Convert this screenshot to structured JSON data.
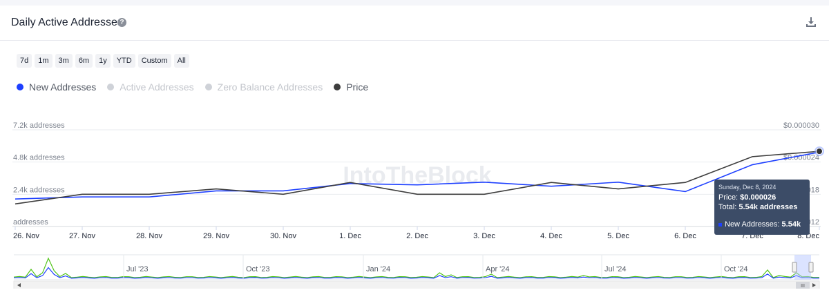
{
  "header": {
    "title": "Daily Active Addresses",
    "help_glyph": "?"
  },
  "ranges": [
    "7d",
    "1m",
    "3m",
    "6m",
    "1y",
    "YTD",
    "Custom",
    "All"
  ],
  "legend": [
    {
      "label": "New Addresses",
      "color": "#1e40ff",
      "active": true
    },
    {
      "label": "Active Addresses",
      "color": "#cfd2d8",
      "active": false
    },
    {
      "label": "Zero Balance Addresses",
      "color": "#cfd2d8",
      "active": false
    },
    {
      "label": "Price",
      "color": "#3d3d3d",
      "active": true
    }
  ],
  "watermark": "IntoTheBlock",
  "chart_data": {
    "type": "line",
    "categories": [
      "26. Nov",
      "27. Nov",
      "28. Nov",
      "29. Nov",
      "30. Nov",
      "1. Dec",
      "2. Dec",
      "3. Dec",
      "4. Dec",
      "5. Dec",
      "6. Dec",
      "7. Dec",
      "8. Dec"
    ],
    "series": [
      {
        "name": "New Addresses",
        "axis": "left",
        "color": "#1e40ff",
        "values": [
          2050,
          2200,
          2200,
          2650,
          2650,
          3200,
          3100,
          3300,
          3000,
          3300,
          2600,
          4600,
          5540
        ]
      },
      {
        "name": "Price",
        "axis": "right",
        "color": "#3d3d3d",
        "values": [
          1.62e-05,
          1.8e-05,
          1.8e-05,
          1.9e-05,
          1.8e-05,
          2.02e-05,
          1.8e-05,
          1.8e-05,
          2.02e-05,
          1.9e-05,
          2.02e-05,
          2.5e-05,
          2.6e-05
        ]
      }
    ],
    "left_axis": {
      "ylim": [
        0,
        7200
      ],
      "ticks": [
        {
          "value": 0,
          "label": "addresses"
        },
        {
          "value": 2400,
          "label": "2.4k addresses"
        },
        {
          "value": 4800,
          "label": "4.8k addresses"
        },
        {
          "value": 7200,
          "label": "7.2k addresses"
        }
      ]
    },
    "right_axis": {
      "ylim": [
        1.2e-05,
        3e-05
      ],
      "ticks": [
        {
          "value": 1.2e-05,
          "label": "$0.000012"
        },
        {
          "value": 1.8e-05,
          "label": "$0.000018"
        },
        {
          "value": 2.4e-05,
          "label": "$0.000024"
        },
        {
          "value": 3e-05,
          "label": "$0.000030"
        }
      ]
    },
    "grid": true
  },
  "tooltip": {
    "date": "Sunday, Dec 8, 2024",
    "price_label": "Price: ",
    "price_value": "$0.000026",
    "total_label": "Total: ",
    "total_value": "5.54k addresses",
    "new_label": "New Addresses: ",
    "new_value": "5.54k"
  },
  "navigator": {
    "labels": [
      "Jul '23",
      "Oct '23",
      "Jan '24",
      "Apr '24",
      "Jul '24",
      "Oct '24"
    ],
    "grip_glyph": "III"
  }
}
